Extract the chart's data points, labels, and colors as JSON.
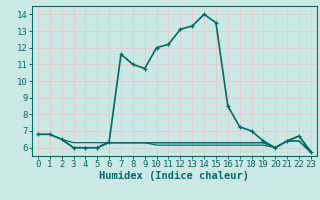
{
  "title": "",
  "xlabel": "Humidex (Indice chaleur)",
  "xlim": [
    -0.5,
    23.5
  ],
  "ylim": [
    5.5,
    14.5
  ],
  "xticks": [
    0,
    1,
    2,
    3,
    4,
    5,
    6,
    7,
    8,
    9,
    10,
    11,
    12,
    13,
    14,
    15,
    16,
    17,
    18,
    19,
    20,
    21,
    22,
    23
  ],
  "yticks": [
    6,
    7,
    8,
    9,
    10,
    11,
    12,
    13,
    14
  ],
  "background_color": "#cce8e4",
  "grid_color": "#e8c8c8",
  "line_color": "#006b6b",
  "spine_color": "#006b6b",
  "lines": [
    {
      "x": [
        0,
        1,
        2,
        3,
        4,
        5,
        6,
        7,
        8,
        9,
        10,
        11,
        12,
        13,
        14,
        15,
        16,
        17,
        18,
        19,
        20,
        21,
        22,
        23
      ],
      "y": [
        6.8,
        6.8,
        6.5,
        6.0,
        6.0,
        6.0,
        6.35,
        11.6,
        11.0,
        10.75,
        12.0,
        12.2,
        13.1,
        13.3,
        14.0,
        13.5,
        8.5,
        7.25,
        7.0,
        6.4,
        6.0,
        6.4,
        6.7,
        5.75
      ],
      "marker": true,
      "lw": 1.2
    },
    {
      "x": [
        0,
        1,
        2,
        3,
        4,
        5,
        6,
        7,
        8,
        9,
        10,
        11,
        12,
        13,
        14,
        15,
        16,
        17,
        18,
        19,
        20,
        21,
        22,
        23
      ],
      "y": [
        6.8,
        6.8,
        6.5,
        6.3,
        6.3,
        6.3,
        6.3,
        6.3,
        6.3,
        6.3,
        6.3,
        6.3,
        6.3,
        6.3,
        6.3,
        6.3,
        6.3,
        6.3,
        6.3,
        6.3,
        6.0,
        6.4,
        6.7,
        5.75
      ],
      "marker": false,
      "lw": 0.9
    },
    {
      "x": [
        2,
        3,
        4,
        5,
        6,
        7,
        8,
        9,
        10,
        11,
        12,
        13,
        14,
        15,
        16,
        17,
        18,
        19,
        20,
        21,
        22,
        23
      ],
      "y": [
        6.5,
        6.0,
        6.0,
        6.0,
        6.3,
        6.3,
        6.3,
        6.3,
        6.3,
        6.3,
        6.3,
        6.3,
        6.3,
        6.3,
        6.3,
        6.3,
        6.3,
        6.3,
        6.0,
        6.4,
        6.4,
        5.75
      ],
      "marker": false,
      "lw": 0.9
    },
    {
      "x": [
        5,
        6,
        7,
        8,
        9,
        10,
        11,
        12,
        13,
        14,
        15,
        16,
        17,
        18,
        19,
        20,
        21,
        22,
        23
      ],
      "y": [
        6.0,
        6.3,
        6.3,
        6.3,
        6.3,
        6.15,
        6.15,
        6.15,
        6.15,
        6.15,
        6.15,
        6.15,
        6.15,
        6.15,
        6.15,
        6.0,
        6.4,
        6.4,
        5.7
      ],
      "marker": false,
      "lw": 0.9
    }
  ],
  "tick_fontsize": 6.5,
  "xlabel_fontsize": 7.5
}
